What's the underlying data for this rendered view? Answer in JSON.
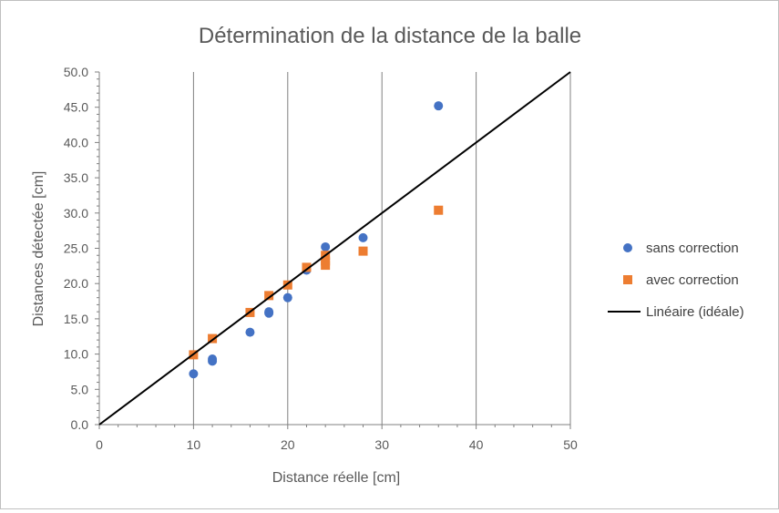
{
  "chart_data": {
    "type": "scatter",
    "title": "Détermination de la distance de la balle",
    "xlabel": "Distance réelle [cm]",
    "ylabel": "Distances détectée [cm]",
    "xlim": [
      0,
      50
    ],
    "ylim": [
      0,
      50
    ],
    "x_ticks": [
      "0",
      "10",
      "20",
      "30",
      "40",
      "50"
    ],
    "y_ticks": [
      "0.0",
      "5.0",
      "10.0",
      "15.0",
      "20.0",
      "25.0",
      "30.0",
      "35.0",
      "40.0",
      "45.0",
      "50.0"
    ],
    "grid": "vertical",
    "legend_position": "right",
    "series": [
      {
        "name": "sans correction",
        "marker": "circle",
        "color": "#4472C4",
        "points": [
          [
            10,
            7.2
          ],
          [
            12,
            9.0
          ],
          [
            12,
            9.3
          ],
          [
            16,
            13.1
          ],
          [
            18,
            15.8
          ],
          [
            18,
            16.0
          ],
          [
            20,
            18.0
          ],
          [
            22,
            21.9
          ],
          [
            24,
            25.2
          ],
          [
            24,
            23.5
          ],
          [
            28,
            26.5
          ],
          [
            36,
            45.2
          ]
        ]
      },
      {
        "name": "avec correction",
        "marker": "square",
        "color": "#ED7D31",
        "points": [
          [
            10,
            9.9
          ],
          [
            12,
            12.2
          ],
          [
            16,
            15.9
          ],
          [
            18,
            18.3
          ],
          [
            20,
            19.8
          ],
          [
            22,
            22.3
          ],
          [
            24,
            24.0
          ],
          [
            24,
            23.2
          ],
          [
            24,
            22.6
          ],
          [
            28,
            24.6
          ],
          [
            36,
            30.4
          ]
        ]
      },
      {
        "name": "Linéaire (idéale)",
        "marker": "line",
        "color": "#000000",
        "points": [
          [
            0,
            0
          ],
          [
            50,
            50
          ]
        ]
      }
    ]
  }
}
